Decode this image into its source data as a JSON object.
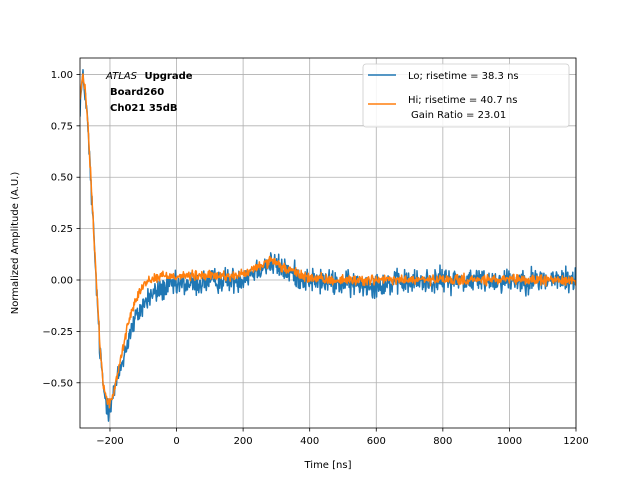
{
  "chart_data": {
    "type": "line",
    "title": "",
    "xlabel": "Time [ns]",
    "ylabel": "Normalized Amplitude (A.U.)",
    "xlim": [
      -290,
      1200
    ],
    "ylim": [
      -0.72,
      1.08
    ],
    "xticks": [
      -200,
      0,
      200,
      400,
      600,
      800,
      1000,
      1200
    ],
    "yticks": [
      -0.5,
      -0.25,
      0.0,
      0.25,
      0.5,
      0.75,
      1.0
    ],
    "xtick_labels": [
      "−200",
      "0",
      "200",
      "400",
      "600",
      "800",
      "1000",
      "1200"
    ],
    "ytick_labels": [
      "−0.50",
      "−0.25",
      "0.00",
      "0.25",
      "0.50",
      "0.75",
      "1.00"
    ],
    "grid": true,
    "legend_position": "top-right",
    "annotation": {
      "line1_italic": "ATLAS",
      "line1_bold": "Upgrade",
      "line2": "Board260",
      "line3": "Ch021 35dB"
    },
    "series": [
      {
        "name": "Lo; risetime = 38.3 ns",
        "color": "#1f77b4",
        "noise": 0.03,
        "x": [
          -290,
          -282,
          -275,
          -268,
          -260,
          -250,
          -240,
          -230,
          -220,
          -212,
          -205,
          -198,
          -190,
          -180,
          -170,
          -160,
          -150,
          -140,
          -130,
          -120,
          -110,
          -100,
          -90,
          -80,
          -70,
          -60,
          -50,
          -40,
          -30,
          -20,
          -10,
          0,
          20,
          40,
          60,
          80,
          100,
          120,
          150,
          180,
          200,
          220,
          250,
          280,
          300,
          320,
          350,
          380,
          400,
          450,
          500,
          550,
          600,
          700,
          800,
          900,
          1000,
          1100,
          1200
        ],
        "y": [
          0.85,
          0.98,
          0.92,
          0.78,
          0.55,
          0.25,
          -0.05,
          -0.35,
          -0.52,
          -0.59,
          -0.62,
          -0.6,
          -0.56,
          -0.5,
          -0.44,
          -0.38,
          -0.32,
          -0.26,
          -0.22,
          -0.18,
          -0.15,
          -0.12,
          -0.1,
          -0.08,
          -0.07,
          -0.06,
          -0.05,
          -0.04,
          -0.04,
          -0.03,
          -0.03,
          -0.03,
          -0.02,
          -0.02,
          -0.02,
          -0.01,
          -0.01,
          0.0,
          0.0,
          0.0,
          0.01,
          0.03,
          0.06,
          0.08,
          0.07,
          0.05,
          0.03,
          0.01,
          0.0,
          -0.01,
          -0.02,
          -0.02,
          -0.02,
          -0.01,
          0.0,
          0.0,
          0.0,
          0.0,
          0.0
        ]
      },
      {
        "name": "Hi; risetime = 40.7 ns",
        "name_line2": "Gain Ratio = 23.01",
        "color": "#ff7f0e",
        "noise": 0.012,
        "x": [
          -290,
          -282,
          -275,
          -268,
          -260,
          -250,
          -240,
          -230,
          -220,
          -212,
          -205,
          -198,
          -190,
          -180,
          -170,
          -160,
          -150,
          -140,
          -130,
          -120,
          -110,
          -100,
          -90,
          -80,
          -70,
          -60,
          -50,
          -40,
          -30,
          -20,
          -10,
          0,
          20,
          40,
          60,
          80,
          100,
          120,
          150,
          180,
          200,
          220,
          250,
          280,
          300,
          320,
          350,
          380,
          400,
          450,
          500,
          550,
          600,
          700,
          800,
          900,
          1000,
          1100,
          1200
        ],
        "y": [
          0.88,
          0.99,
          0.93,
          0.8,
          0.57,
          0.27,
          -0.03,
          -0.33,
          -0.5,
          -0.57,
          -0.6,
          -0.59,
          -0.56,
          -0.48,
          -0.4,
          -0.32,
          -0.25,
          -0.18,
          -0.12,
          -0.08,
          -0.05,
          -0.03,
          -0.01,
          0.0,
          0.01,
          0.01,
          0.02,
          0.02,
          0.02,
          0.02,
          0.02,
          0.02,
          0.02,
          0.02,
          0.02,
          0.02,
          0.02,
          0.02,
          0.02,
          0.02,
          0.03,
          0.04,
          0.07,
          0.09,
          0.08,
          0.06,
          0.04,
          0.02,
          0.01,
          0.0,
          0.0,
          0.0,
          0.0,
          0.0,
          0.0,
          0.0,
          0.0,
          0.0,
          0.0
        ]
      }
    ]
  }
}
